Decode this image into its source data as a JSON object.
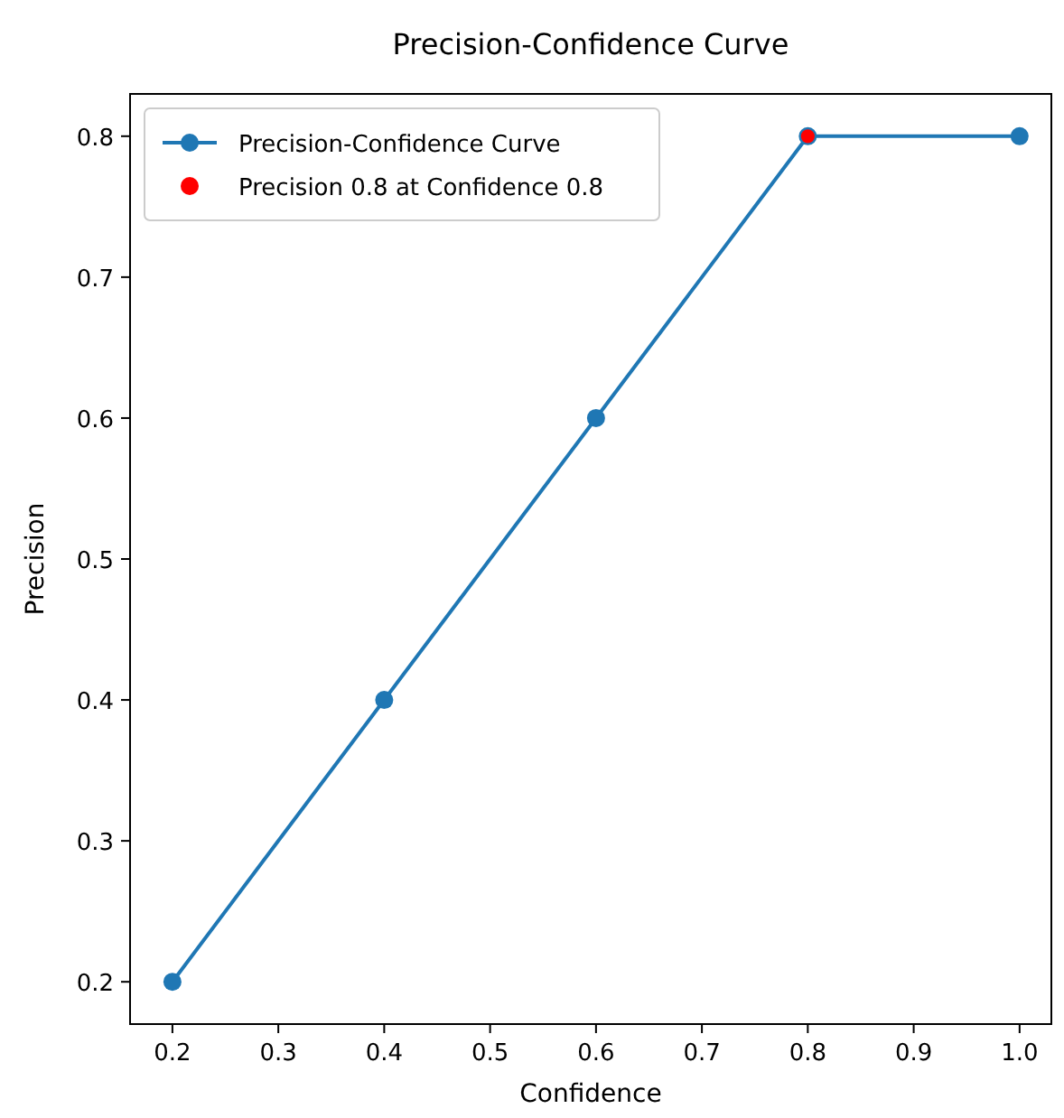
{
  "chart_data": {
    "type": "line",
    "title": "Precision-Confidence Curve",
    "xlabel": "Confidence",
    "ylabel": "Precision",
    "x": [
      0.2,
      0.4,
      0.6,
      0.8,
      1.0
    ],
    "series": [
      {
        "name": "Precision-Confidence Curve",
        "color": "#1f77b4",
        "values": [
          0.2,
          0.4,
          0.6,
          0.8,
          0.8
        ],
        "marker": "circle"
      },
      {
        "name": "Precision 0.8 at Confidence 0.8",
        "type": "scatter",
        "color": "#ff0000",
        "x": [
          0.8
        ],
        "values": [
          0.8
        ]
      }
    ],
    "xlim": [
      0.16,
      1.03
    ],
    "ylim": [
      0.17,
      0.83
    ],
    "xticks": [
      0.2,
      0.3,
      0.4,
      0.5,
      0.6,
      0.7,
      0.8,
      0.9,
      {
        "value": 1,
        "label": "1.0"
      }
    ],
    "yticks": [
      0.2,
      0.3,
      0.4,
      0.5,
      0.6,
      0.7,
      0.8
    ],
    "legend": "top left",
    "grid": false
  }
}
